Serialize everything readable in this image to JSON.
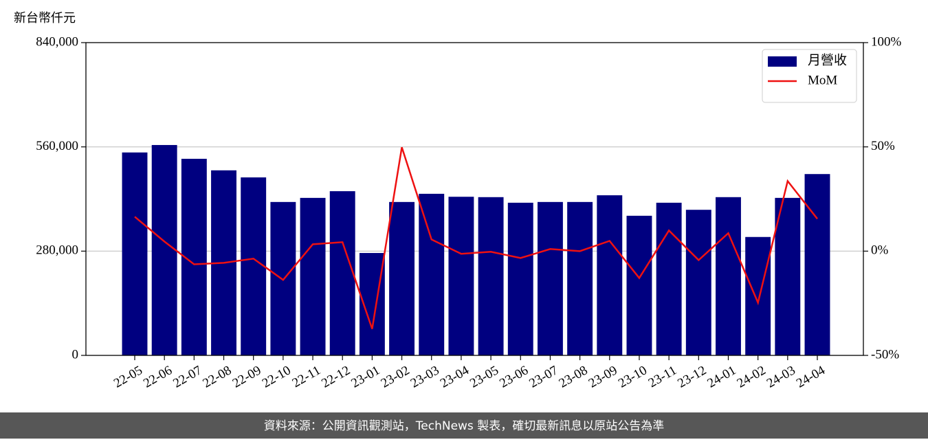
{
  "chart_data": {
    "type": "bar",
    "y_label": "新台幣仟元",
    "footer": "資料來源：公開資訊觀測站，TechNews 製表，確切最新訊息以原站公告為準",
    "categories": [
      "22-05",
      "22-06",
      "22-07",
      "22-08",
      "22-09",
      "22-10",
      "22-11",
      "22-12",
      "23-01",
      "23-02",
      "23-03",
      "23-04",
      "23-05",
      "23-06",
      "23-07",
      "23-08",
      "23-09",
      "23-10",
      "23-11",
      "23-12",
      "24-01",
      "24-02",
      "24-03",
      "24-04"
    ],
    "series": [
      {
        "name": "月營收",
        "type": "bar",
        "color": "#000080",
        "values": [
          545000,
          565000,
          528000,
          497000,
          478000,
          412000,
          423000,
          441000,
          275000,
          412000,
          434000,
          426000,
          425000,
          410000,
          412000,
          412000,
          430000,
          375000,
          410000,
          391000,
          425000,
          318000,
          423000,
          487000
        ]
      },
      {
        "name": "MoM",
        "type": "line",
        "axis": "y2",
        "color": "#ee1111",
        "values": [
          16.5,
          4.6,
          -6.3,
          -5.6,
          -3.6,
          -13.8,
          3.3,
          4.3,
          -37.3,
          49.8,
          5.6,
          -1.3,
          -0.3,
          -3.3,
          1.0,
          0,
          4.9,
          -12.9,
          9.9,
          -4.3,
          8.6,
          -24.7,
          33.6,
          15.5
        ]
      }
    ],
    "ylim": [
      0,
      840000
    ],
    "yticks": [
      0,
      {
        "value": 280000,
        "label": "280,000"
      },
      {
        "value": 560000,
        "label": "560,000"
      },
      {
        "value": 840000,
        "label": "840,000"
      }
    ],
    "y2lim": [
      -50,
      100
    ],
    "y2ticks": [
      {
        "value": -50,
        "label": "-50%"
      },
      {
        "value": 0,
        "label": "0%"
      },
      {
        "value": 50,
        "label": "50%"
      },
      {
        "value": 100,
        "label": "100%"
      }
    ],
    "grid": true,
    "legend": "upper right"
  }
}
